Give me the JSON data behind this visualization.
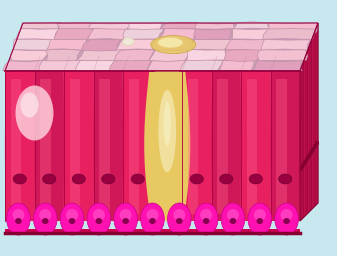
{
  "bg_color": "#c8e8f0",
  "figsize": [
    3.37,
    2.56
  ],
  "dpi": 100,
  "top_face_bg": "#c8a0b8",
  "cell_colors_top": [
    "#f0b8cc",
    "#f5c8d8",
    "#f8d5e0",
    "#e8a8c0",
    "#f2c0d0",
    "#eed0dc",
    "#f5bcd0",
    "#e0a0bc",
    "#f8ccd8",
    "#eabccc",
    "#f0c5d2"
  ],
  "cell_border_top": "#c090a8",
  "front_bg": "#e02868",
  "col_cell_main": "#e82060",
  "col_cell_alt": "#d01858",
  "col_highlight": "#ff6090",
  "col_dark_edge": "#aa0040",
  "col_shadow": "#c01050",
  "mucous_yellow": "#e8c860",
  "mucous_light": "#f0e080",
  "mucous_cream": "#f5ebb8",
  "left_blob_color": "#ffb8c8",
  "left_blob_hl": "#ffe8ef",
  "nucleus_color": "#990040",
  "nucleus_edge": "#660030",
  "base_magenta": "#ff10b0",
  "base_mid": "#e800a0",
  "base_dark": "#cc0090",
  "right_face_color": "#cc1858",
  "right_cell_alt": "#b81050",
  "right_nucleus": "#880030",
  "side_shadow": "#b00040",
  "bottom_edge": "#aa0840"
}
